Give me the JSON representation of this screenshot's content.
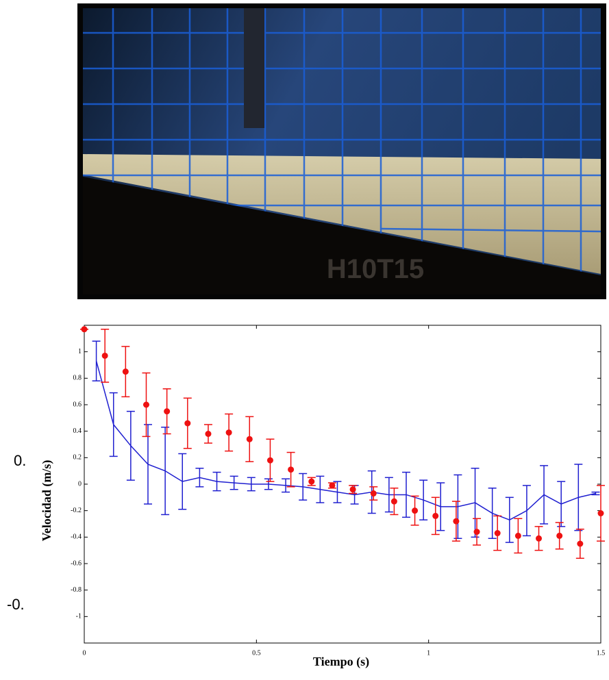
{
  "photo_watermark": "H10T15",
  "stray_labels": [
    "0.",
    "-0."
  ],
  "chart_data": {
    "type": "errorbar",
    "x_label": "Tiempo (s)",
    "y_label": "Velocidad (m/s)",
    "xlim": [
      0,
      1.5
    ],
    "xticks": [
      0,
      0.5,
      1,
      1.5
    ],
    "ylim": [
      -1.2,
      1.2
    ],
    "yticks": [
      -1,
      -0.8,
      -0.6,
      -0.4,
      -0.2,
      0,
      0.2,
      0.4,
      0.6,
      0.8,
      1
    ],
    "series": [
      {
        "color": "#1f1fd0",
        "style": "line",
        "x": [
          0.035,
          0.085,
          0.135,
          0.185,
          0.235,
          0.285,
          0.335,
          0.385,
          0.435,
          0.485,
          0.535,
          0.585,
          0.635,
          0.685,
          0.735,
          0.785,
          0.835,
          0.885,
          0.935,
          0.985,
          1.035,
          1.085,
          1.135,
          1.185,
          1.235,
          1.285,
          1.335,
          1.385,
          1.435,
          1.485
        ],
        "values": [
          0.93,
          0.45,
          0.29,
          0.15,
          0.1,
          0.02,
          0.05,
          0.02,
          0.01,
          0,
          0,
          -0.01,
          -0.02,
          -0.04,
          -0.06,
          -0.08,
          -0.06,
          -0.08,
          -0.08,
          -0.12,
          -0.17,
          -0.17,
          -0.14,
          -0.22,
          -0.27,
          -0.2,
          -0.08,
          -0.15,
          -0.1,
          -0.07
        ],
        "errors": [
          0.15,
          0.24,
          0.26,
          0.3,
          0.33,
          0.21,
          0.07,
          0.07,
          0.05,
          0.05,
          0.04,
          0.05,
          0.1,
          0.1,
          0.08,
          0.07,
          0.16,
          0.13,
          0.17,
          0.15,
          0.18,
          0.24,
          0.26,
          0.19,
          0.17,
          0.19,
          0.22,
          0.17,
          0.25,
          0.01
        ]
      },
      {
        "color": "#ee1111",
        "style": "points",
        "x": [
          0,
          0.06,
          0.12,
          0.18,
          0.24,
          0.3,
          0.36,
          0.42,
          0.48,
          0.54,
          0.6,
          0.66,
          0.72,
          0.78,
          0.84,
          0.9,
          0.96,
          1.02,
          1.08,
          1.14,
          1.2,
          1.26,
          1.32,
          1.38,
          1.44,
          1.5
        ],
        "values": [
          1.17,
          0.97,
          0.85,
          0.6,
          0.55,
          0.46,
          0.38,
          0.39,
          0.34,
          0.18,
          0.11,
          0.02,
          -0.01,
          -0.04,
          -0.07,
          -0.13,
          -0.2,
          -0.24,
          -0.28,
          -0.36,
          -0.37,
          -0.39,
          -0.41,
          -0.39,
          -0.45,
          -0.22
        ],
        "errors": [
          0,
          0.2,
          0.19,
          0.24,
          0.17,
          0.19,
          0.07,
          0.14,
          0.17,
          0.16,
          0.13,
          0.03,
          0.02,
          0.03,
          0.05,
          0.1,
          0.11,
          0.14,
          0.15,
          0.1,
          0.13,
          0.13,
          0.09,
          0.1,
          0.11,
          0.21
        ]
      }
    ]
  }
}
